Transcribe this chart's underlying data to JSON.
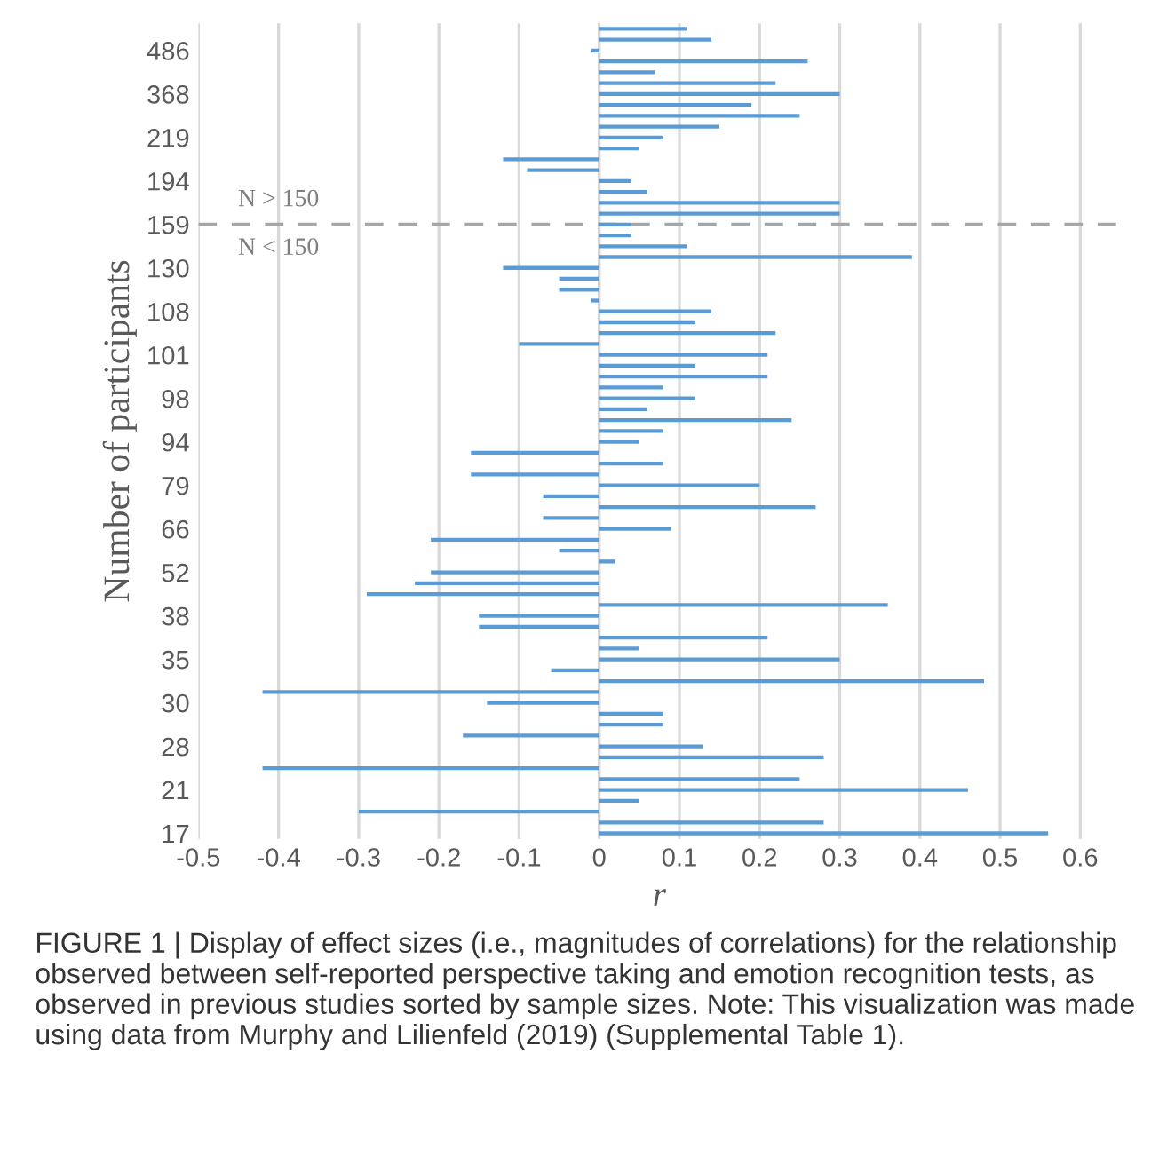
{
  "chart_data": {
    "type": "bar",
    "orientation": "horizontal",
    "xlabel": "r",
    "ylabel": "Number of participants",
    "categories": [
      null,
      null,
      "486",
      null,
      null,
      null,
      "368",
      null,
      null,
      null,
      "219",
      null,
      null,
      null,
      "194",
      null,
      null,
      null,
      "159",
      null,
      null,
      null,
      "130",
      null,
      null,
      null,
      "108",
      null,
      null,
      null,
      "101",
      null,
      null,
      null,
      "98",
      null,
      null,
      null,
      "94",
      null,
      null,
      null,
      "79",
      null,
      null,
      null,
      "66",
      null,
      null,
      null,
      "52",
      null,
      null,
      null,
      "38",
      null,
      null,
      null,
      "35",
      null,
      null,
      null,
      "30",
      null,
      null,
      null,
      "28",
      null,
      null,
      null,
      "21",
      null,
      null,
      null,
      "17"
    ],
    "values": [
      0.11,
      0.14,
      -0.01,
      0.26,
      0.07,
      0.22,
      0.3,
      0.19,
      0.25,
      0.15,
      0.08,
      0.05,
      -0.12,
      -0.09,
      0.04,
      0.06,
      0.3,
      0.3,
      0.04,
      0.04,
      0.11,
      0.39,
      -0.12,
      -0.05,
      -0.05,
      -0.01,
      0.14,
      0.12,
      0.22,
      -0.1,
      0.21,
      0.12,
      0.21,
      0.08,
      0.12,
      0.06,
      0.24,
      0.08,
      0.05,
      -0.16,
      0.08,
      -0.16,
      0.2,
      -0.07,
      0.27,
      -0.07,
      0.09,
      -0.21,
      -0.05,
      0.02,
      -0.21,
      -0.23,
      -0.29,
      0.36,
      -0.15,
      -0.15,
      0.21,
      0.05,
      0.3,
      -0.06,
      0.48,
      -0.42,
      -0.14,
      0.08,
      0.08,
      -0.17,
      0.13,
      0.28,
      -0.42,
      0.25,
      0.46,
      0.05,
      -0.3,
      0.28,
      0.56
    ],
    "color": "#5b9bd5",
    "xlim": [
      -0.5,
      0.65
    ],
    "xticks": [
      -0.5,
      -0.4,
      -0.3,
      -0.2,
      -0.1,
      0,
      0.1,
      0.2,
      0.3,
      0.4,
      0.5,
      0.6
    ],
    "grid": "x",
    "ref_lines": [
      {
        "axis": "y",
        "value": "159",
        "color": "#a6a6a6",
        "line_style": "dashed"
      }
    ],
    "annotations": [
      "N > 150",
      "N < 150",
      "FIGURE 1 | Display of effect sizes (i.e., magnitudes of correlations) for the relationship observed between self-reported perspective taking and emotion recognition tests, as observed in previous studies sorted by sample sizes. Note: This visualization was made using data from Murphy and Lilienfeld (2019) (Supplemental Table 1)."
    ]
  }
}
